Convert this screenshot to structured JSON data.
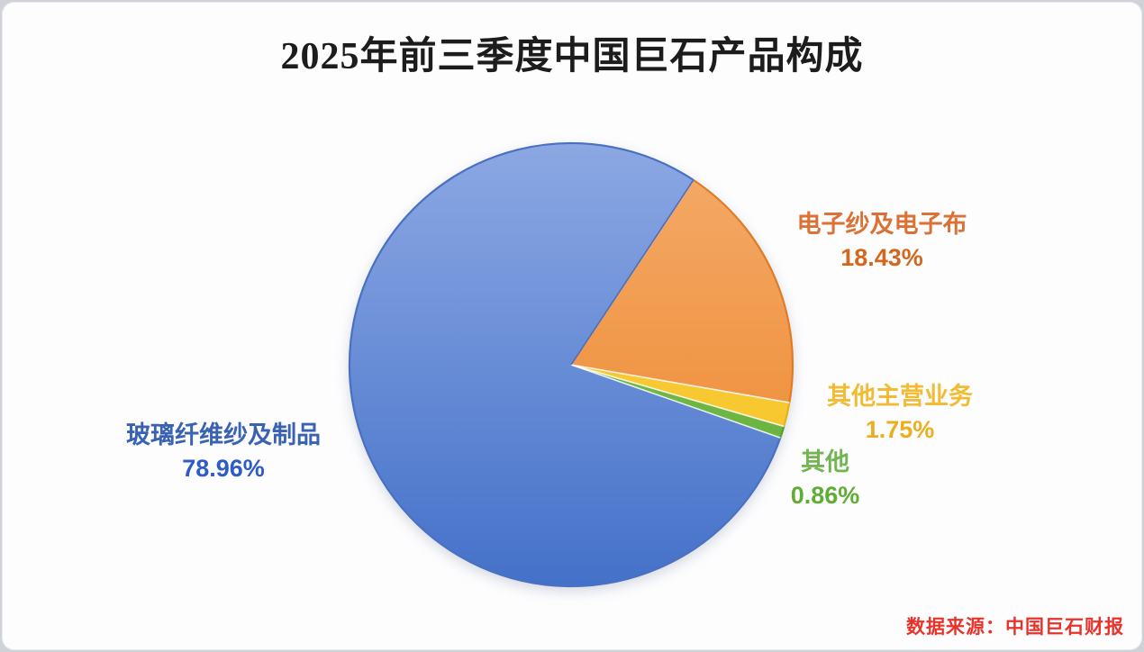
{
  "title": "2025年前三季度中国巨石产品构成",
  "title_color": "#1c1c1c",
  "background_color": "#fdfdfe",
  "source_note": "数据来源：中国巨石财报",
  "source_color": "#e8332b",
  "chart_data": {
    "type": "pie",
    "title": "2025年前三季度中国巨石产品构成",
    "unit": "percent",
    "direction": "clockwise",
    "start_angle_deg": 33.5,
    "legend_position": "none",
    "labels_style": "callouts-outside",
    "slices": [
      {
        "label": "电子纱及电子布",
        "value": 18.43,
        "display": "18.43%",
        "color_top": "#f4ab6a",
        "color_bottom": "#ed8427",
        "edge_color": "#e07c26",
        "label_color": "#db7134",
        "value_color": "#d4671e"
      },
      {
        "label": "其他主营业务",
        "value": 1.75,
        "display": "1.75%",
        "color_top": "#ffd34d",
        "color_bottom": "#f3c01c",
        "edge_color": "#e4b31a",
        "label_color": "#f2bb33",
        "value_color": "#e9af1e"
      },
      {
        "label": "其他",
        "value": 0.86,
        "display": "0.86%",
        "color_top": "#87c65e",
        "color_bottom": "#5dab32",
        "edge_color": "#55a12d",
        "label_color": "#74b553",
        "value_color": "#60ad36"
      },
      {
        "label": "玻璃纤维纱及制品",
        "value": 78.96,
        "display": "78.96%",
        "color_top": "#8ca8e3",
        "color_bottom": "#4471c9",
        "edge_color": "#4a70c2",
        "label_color": "#3a62b2",
        "value_color": "#2e5cc7"
      }
    ]
  }
}
